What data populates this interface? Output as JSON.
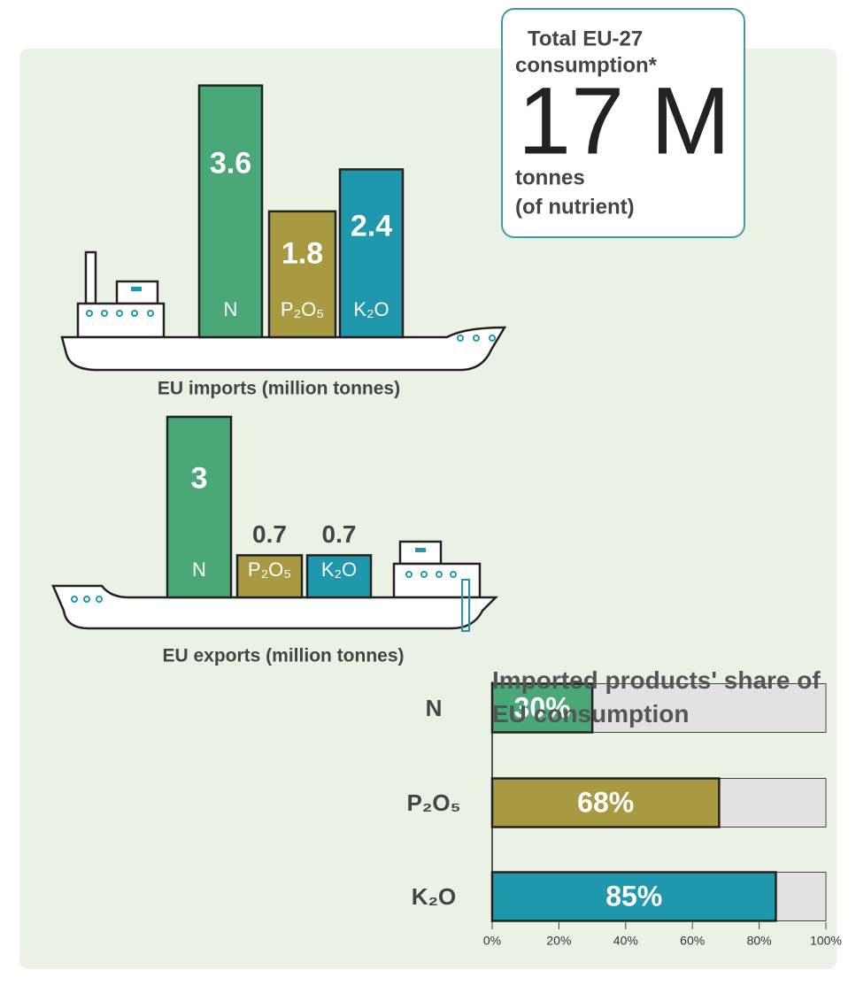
{
  "callout": {
    "heading": [
      "Total EU-27",
      "consumption*"
    ],
    "value": "17 M",
    "unit": [
      "tonnes",
      "(of nutrient)"
    ]
  },
  "chart_data": [
    {
      "type": "bar",
      "title": "EU imports (million tonnes)",
      "categories": [
        "N",
        "P₂O₅",
        "K₂O"
      ],
      "values": [
        3.6,
        1.8,
        2.4
      ],
      "colors": [
        "#4aa878",
        "#a89a40",
        "#1f98ae"
      ]
    },
    {
      "type": "bar",
      "title": "EU exports (million tonnes)",
      "categories": [
        "N",
        "P₂O₅",
        "K₂O"
      ],
      "values": [
        3,
        0.7,
        0.7
      ],
      "colors": [
        "#4aa878",
        "#a89a40",
        "#1f98ae"
      ]
    },
    {
      "type": "hbar",
      "title": "Imported products' share of EU consumption",
      "categories": [
        "N",
        "P₂O₅",
        "K₂O"
      ],
      "values": [
        30,
        68,
        85
      ],
      "value_labels": [
        "30%",
        "68%",
        "85%"
      ],
      "colors": [
        "#4aa878",
        "#a89a40",
        "#1f98ae"
      ],
      "xlim": [
        0,
        100
      ],
      "xticks": [
        {
          "value": 0,
          "label": "0%"
        },
        {
          "value": 20,
          "label": "20%"
        },
        {
          "value": 40,
          "label": "40%"
        },
        {
          "value": 60,
          "label": "60%"
        },
        {
          "value": 80,
          "label": "80%"
        },
        {
          "value": 100,
          "label": "100%"
        }
      ]
    }
  ]
}
